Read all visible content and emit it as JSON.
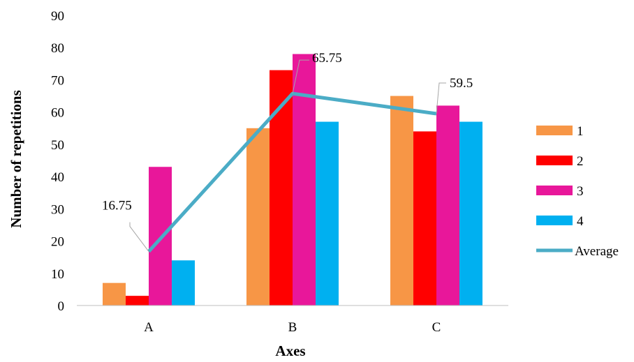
{
  "chart_data": {
    "type": "bar",
    "title": "",
    "xlabel": "Axes",
    "ylabel": "Number of repetitions",
    "categories": [
      "A",
      "B",
      "C"
    ],
    "ylim": [
      0,
      90
    ],
    "yticks": [
      0,
      10,
      20,
      30,
      40,
      50,
      60,
      70,
      80,
      90
    ],
    "grid": false,
    "legend_position": "right",
    "series": [
      {
        "name": "1",
        "color": "#F79646",
        "values": [
          7,
          55,
          65
        ]
      },
      {
        "name": "2",
        "color": "#FF0000",
        "values": [
          3,
          73,
          54
        ]
      },
      {
        "name": "3",
        "color": "#E8179A",
        "values": [
          43,
          78,
          62
        ]
      },
      {
        "name": "4",
        "color": "#00B0F0",
        "values": [
          14,
          57,
          57
        ]
      }
    ],
    "line": {
      "name": "Average",
      "color": "#4BACC6",
      "values": [
        16.75,
        65.75,
        59.5
      ],
      "labels": [
        "16.75",
        "65.75",
        "59.5"
      ]
    }
  }
}
